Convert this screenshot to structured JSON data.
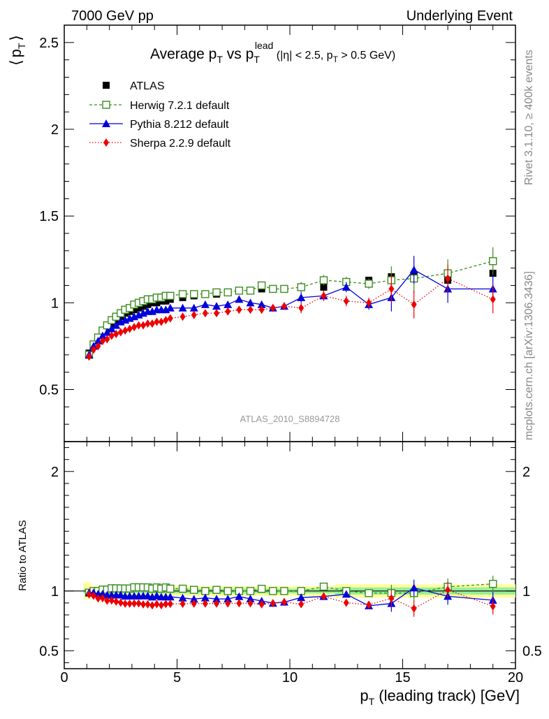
{
  "header": {
    "left": "7000 GeV pp",
    "right": "Underlying Event"
  },
  "title": {
    "prefix": "Average p",
    "sub1": "T",
    "vs": " vs p",
    "sub2": "T",
    "sup": "lead",
    "cuts1": " (|η| < 2.5, p",
    "cuts_sub": "T",
    "cuts2": " > 0.5 GeV)"
  },
  "ylabel": {
    "open": "⟨",
    "p": "p",
    "sub": "T",
    "close": "⟩"
  },
  "ratio_ylabel": "Ratio to ATLAS",
  "xlabel": {
    "p": "p",
    "sub": "T",
    "rest": " (leading track) [GeV]"
  },
  "watermark": "ATLAS_2010_S8894728",
  "side_text_1": "Rivet 3.1.10, ≥ 400k events",
  "side_text_2": "mcplots.cern.ch [arXiv:1306.3436]",
  "colors": {
    "atlas": "#000000",
    "herwig": "#3a8c1f",
    "pythia": "#0000dd",
    "sherpa": "#ee0000",
    "band_yellow": "#ffff99",
    "band_green": "#99ee99"
  },
  "chart_data": {
    "type": "scatter",
    "xlim": [
      0,
      20
    ],
    "ylim": [
      0.2,
      2.6
    ],
    "ratio_ylim": [
      0.35,
      2.25
    ],
    "xticks": [
      "0",
      "5",
      "10",
      "15",
      "20"
    ],
    "yticks": [
      "0.5",
      "1",
      "1.5",
      "2",
      "2.5"
    ],
    "ratio_yticks": [
      "0.5",
      "1",
      "2"
    ],
    "x": [
      1.1,
      1.3,
      1.5,
      1.7,
      1.9,
      2.1,
      2.3,
      2.5,
      2.7,
      2.9,
      3.1,
      3.3,
      3.5,
      3.7,
      3.9,
      4.1,
      4.3,
      4.5,
      4.7,
      5.25,
      5.75,
      6.25,
      6.75,
      7.25,
      7.75,
      8.25,
      8.75,
      9.25,
      9.75,
      10.5,
      11.5,
      12.5,
      13.5,
      14.5,
      15.5,
      17,
      19
    ],
    "series": [
      {
        "name": "ATLAS",
        "style": "data",
        "y": [
          0.71,
          0.76,
          0.8,
          0.83,
          0.86,
          0.88,
          0.9,
          0.92,
          0.94,
          0.95,
          0.96,
          0.97,
          0.98,
          0.99,
          1.0,
          1.0,
          1.01,
          1.01,
          1.02,
          1.03,
          1.04,
          1.05,
          1.05,
          1.06,
          1.07,
          1.07,
          1.08,
          1.08,
          1.08,
          1.09,
          1.09,
          1.12,
          1.13,
          1.15,
          1.16,
          1.13,
          1.17
        ]
      },
      {
        "name": "Herwig 7.2.1 default",
        "style": "open-square-dashed",
        "y": [
          0.7,
          0.76,
          0.8,
          0.84,
          0.87,
          0.9,
          0.92,
          0.94,
          0.96,
          0.97,
          0.99,
          1.0,
          1.01,
          1.02,
          1.02,
          1.03,
          1.03,
          1.04,
          1.04,
          1.05,
          1.05,
          1.05,
          1.06,
          1.06,
          1.07,
          1.07,
          1.1,
          1.08,
          1.08,
          1.09,
          1.13,
          1.12,
          1.11,
          1.13,
          1.14,
          1.17,
          1.24
        ]
      },
      {
        "name": "Pythia 8.212 default",
        "style": "triangle-solid",
        "y": [
          0.7,
          0.75,
          0.78,
          0.81,
          0.83,
          0.85,
          0.87,
          0.89,
          0.9,
          0.91,
          0.92,
          0.93,
          0.94,
          0.95,
          0.95,
          0.96,
          0.96,
          0.96,
          0.97,
          0.97,
          0.97,
          0.99,
          0.98,
          0.99,
          1.02,
          1.0,
          0.99,
          0.97,
          0.98,
          1.03,
          1.04,
          1.09,
          0.99,
          1.03,
          1.19,
          1.08,
          1.08
        ]
      },
      {
        "name": "Sherpa 2.2.9 default",
        "style": "diamond-dotted",
        "y": [
          0.69,
          0.73,
          0.75,
          0.78,
          0.79,
          0.81,
          0.82,
          0.83,
          0.84,
          0.85,
          0.86,
          0.87,
          0.87,
          0.88,
          0.88,
          0.89,
          0.89,
          0.9,
          0.91,
          0.92,
          0.93,
          0.94,
          0.94,
          0.95,
          0.96,
          0.96,
          0.96,
          0.97,
          0.98,
          0.97,
          1.04,
          1.01,
          1.0,
          1.08,
          0.99,
          1.14,
          1.02
        ]
      }
    ],
    "legend_position": "top-left"
  }
}
